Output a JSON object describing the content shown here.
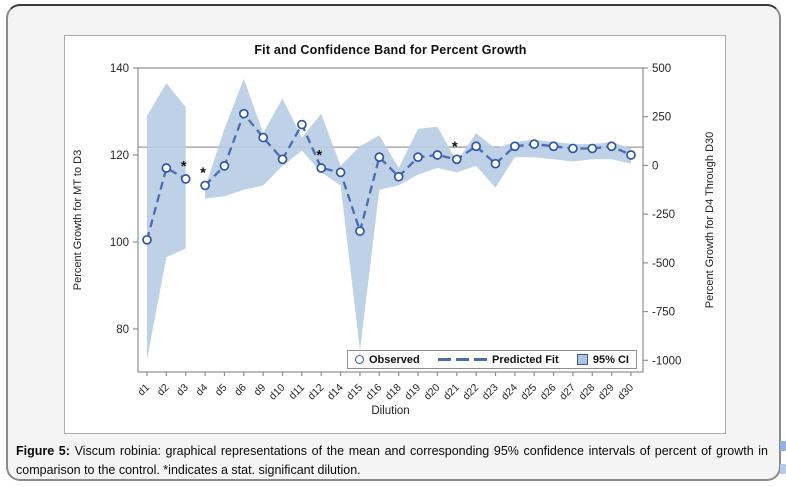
{
  "figure": {
    "caption_label": "Figure 5:",
    "caption_text": "Viscum robinia: graphical representations of the mean and corresponding 95% confidence intervals of percent of growth in comparison to the control. *indicates a stat. significant dilution."
  },
  "chart_data": {
    "type": "line",
    "title": "Fit and Confidence Band for Percent Growth",
    "xlabel": "Dilution",
    "ylabel_left": "Percent Growth for MT to D3",
    "ylabel_right": "Percent Growth for D4 Through D30",
    "left_axis": {
      "ticks": [
        140,
        120,
        100,
        80
      ],
      "max": 140,
      "min": 70.1
    },
    "right_axis": {
      "ticks": [
        500,
        250,
        0,
        -250,
        -500,
        -750,
        -1000
      ],
      "max": 500,
      "min": -1060
    },
    "reference_line_left_value": 121.8,
    "categories": [
      "d1",
      "d2",
      "d3",
      "d4",
      "d5",
      "d6",
      "d9",
      "d10",
      "d11",
      "d12",
      "d14",
      "d15",
      "d16",
      "d18",
      "d19",
      "d20",
      "d21",
      "d22",
      "d23",
      "d24",
      "d25",
      "d26",
      "d27",
      "d28",
      "d29",
      "d30"
    ],
    "series": [
      {
        "name": "Observed",
        "values": [
          100.5,
          117,
          114.5,
          113,
          117.5,
          129.5,
          124,
          119,
          127,
          117,
          116,
          102.5,
          119.5,
          115,
          119.5,
          120,
          119,
          122,
          118,
          122,
          122.5,
          122,
          121.5,
          121.5,
          122,
          120
        ]
      }
    ],
    "band": {
      "name": "95% CI",
      "upper": [
        129,
        136.5,
        131,
        112.5,
        126,
        137.5,
        125,
        133,
        124,
        129.5,
        117.5,
        122,
        124.5,
        117,
        126,
        126.5,
        118.5,
        125,
        121.5,
        123,
        123.5,
        123,
        122.5,
        122.5,
        123,
        121.5
      ],
      "lower": [
        73,
        96.5,
        98.5,
        110,
        110.5,
        112,
        113,
        117.5,
        121,
        116,
        113,
        75,
        112,
        113,
        115.5,
        117,
        116,
        117.5,
        112.5,
        119.5,
        119.5,
        119,
        118.5,
        119,
        119,
        118
      ]
    },
    "segments": [
      [
        0,
        2
      ],
      [
        3,
        25
      ]
    ],
    "significant_dilutions": [
      "d3",
      "d4",
      "d12",
      "d21"
    ],
    "legend": [
      {
        "label": "Observed"
      },
      {
        "label": "Predicted Fit"
      },
      {
        "label": "95% CI"
      }
    ],
    "colors": {
      "band": "#b9cde4",
      "line": "#4a6cb3",
      "marker": "#2d56a5",
      "reference_line": "#9a9a9a",
      "frame": "#8f8f8f",
      "text": "#262626"
    }
  }
}
